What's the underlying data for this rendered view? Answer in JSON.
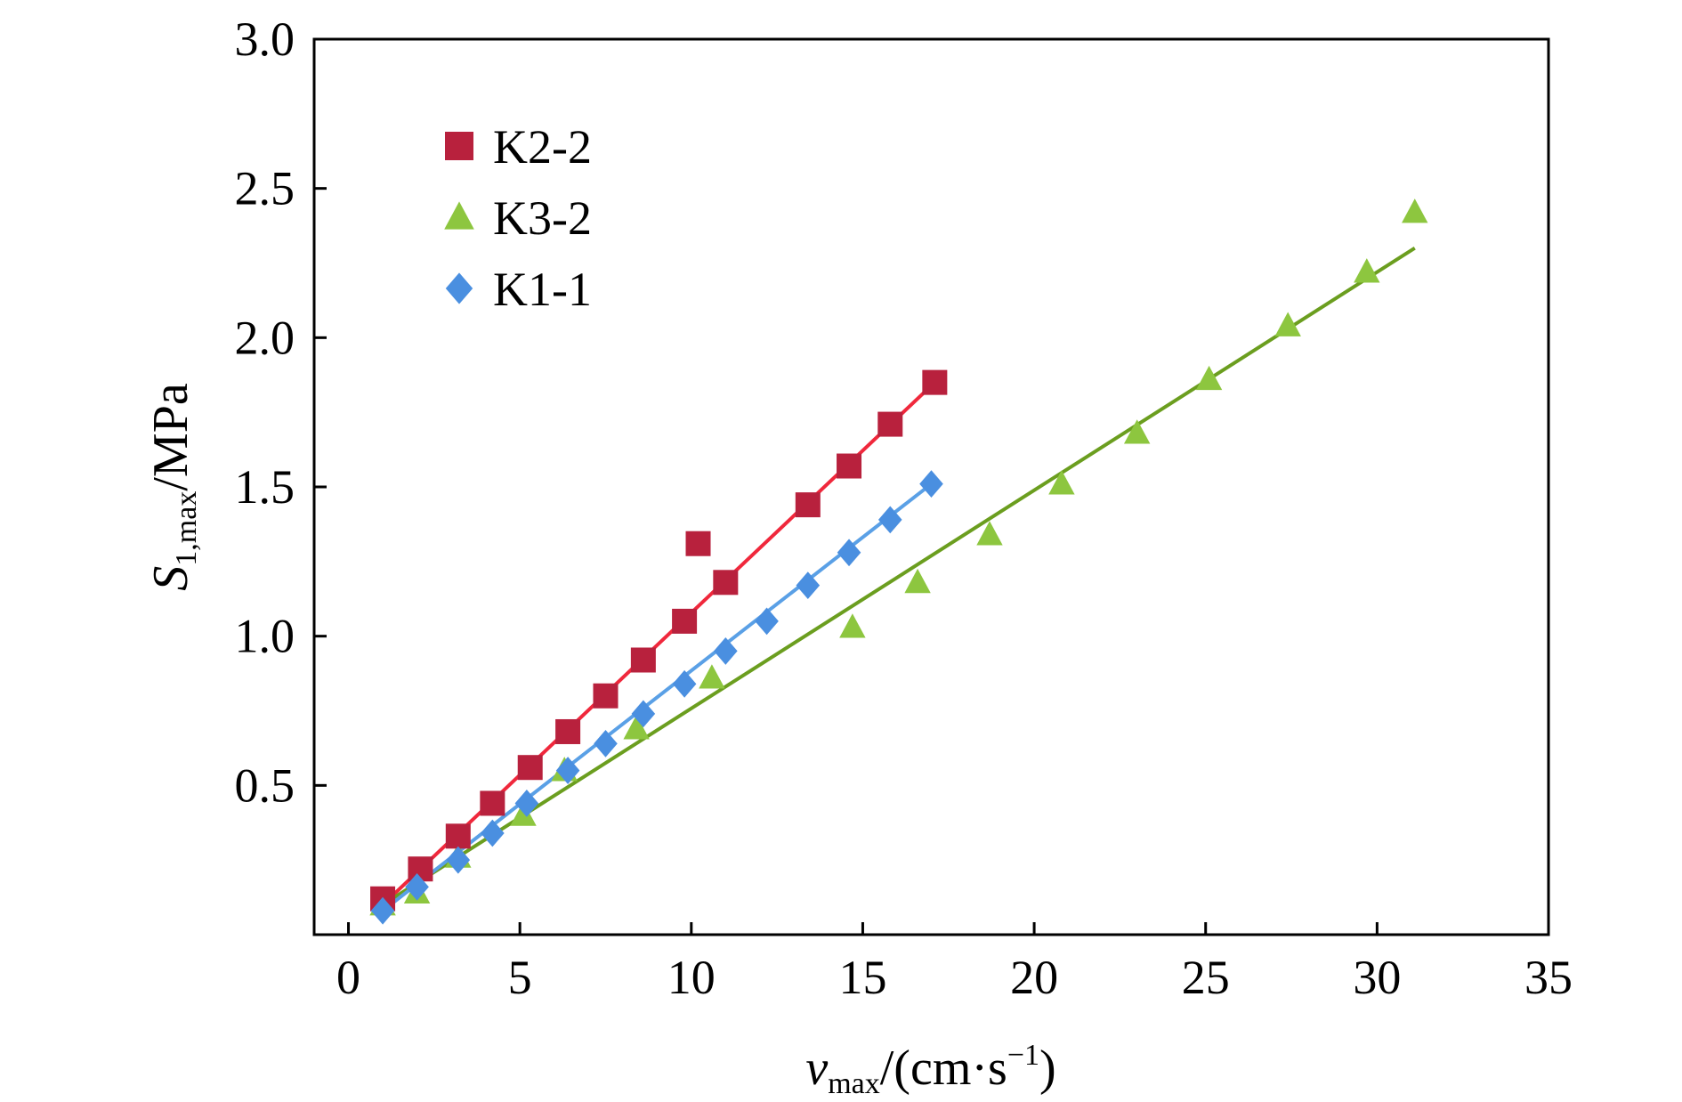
{
  "chart_data": {
    "type": "scatter",
    "xlabel": {
      "main": "v",
      "sub": "max",
      "unit_prefix": "/(cm·s",
      "unit_sup": "−1",
      "unit_suffix": ")"
    },
    "ylabel": {
      "main": "S",
      "sub": "1,max",
      "unit": "/MPa"
    },
    "xlim": [
      -1,
      35
    ],
    "ylim": [
      0,
      3.0
    ],
    "x_ticks": [
      0,
      5,
      10,
      15,
      20,
      25,
      30,
      35
    ],
    "x_tick_labels": [
      "0",
      "5",
      "10",
      "15",
      "20",
      "25",
      "30",
      "35"
    ],
    "y_ticks": [
      0.5,
      1.0,
      1.5,
      2.0,
      2.5,
      3.0
    ],
    "y_tick_labels": [
      "0.5",
      "1.0",
      "1.5",
      "2.0",
      "2.5",
      "3.0"
    ],
    "grid": false,
    "legend_position": "top-left",
    "series": [
      {
        "name": "K2-2",
        "marker": "square",
        "marker_color": "#b8213d",
        "line_color": "#f0283c",
        "x": [
          1.0,
          2.1,
          3.2,
          4.2,
          5.3,
          6.4,
          7.5,
          8.6,
          9.8,
          10.2,
          11.0,
          13.4,
          14.6,
          15.8,
          17.1
        ],
        "y": [
          0.12,
          0.22,
          0.33,
          0.44,
          0.56,
          0.68,
          0.8,
          0.92,
          1.05,
          1.31,
          1.18,
          1.44,
          1.57,
          1.71,
          1.85
        ],
        "fit": {
          "x": [
            1.0,
            17.1
          ],
          "y": [
            0.1,
            1.85
          ]
        }
      },
      {
        "name": "K3-2",
        "marker": "triangle",
        "marker_color": "#8dc63f",
        "line_color": "#6b9e1f",
        "x": [
          1.0,
          2.0,
          3.2,
          5.1,
          6.3,
          8.4,
          10.6,
          14.7,
          16.6,
          18.7,
          20.8,
          23.0,
          25.1,
          27.4,
          29.7,
          31.1
        ],
        "y": [
          0.1,
          0.14,
          0.26,
          0.4,
          0.55,
          0.69,
          0.86,
          1.03,
          1.18,
          1.34,
          1.51,
          1.68,
          1.86,
          2.04,
          2.22,
          2.42
        ],
        "fit": {
          "x": [
            1.0,
            31.1
          ],
          "y": [
            0.1,
            2.3
          ]
        }
      },
      {
        "name": "K1-1",
        "marker": "diamond",
        "marker_color": "#4a8fe0",
        "line_color": "#5aa0e6",
        "x": [
          1.0,
          2.0,
          3.2,
          4.2,
          5.2,
          6.4,
          7.5,
          8.6,
          9.8,
          11.0,
          12.2,
          13.4,
          14.6,
          15.8,
          17.0
        ],
        "y": [
          0.08,
          0.16,
          0.25,
          0.34,
          0.44,
          0.55,
          0.64,
          0.74,
          0.84,
          0.95,
          1.05,
          1.17,
          1.28,
          1.39,
          1.51
        ],
        "fit": {
          "x": [
            1.0,
            17.0
          ],
          "y": [
            0.08,
            1.51
          ]
        }
      }
    ]
  }
}
